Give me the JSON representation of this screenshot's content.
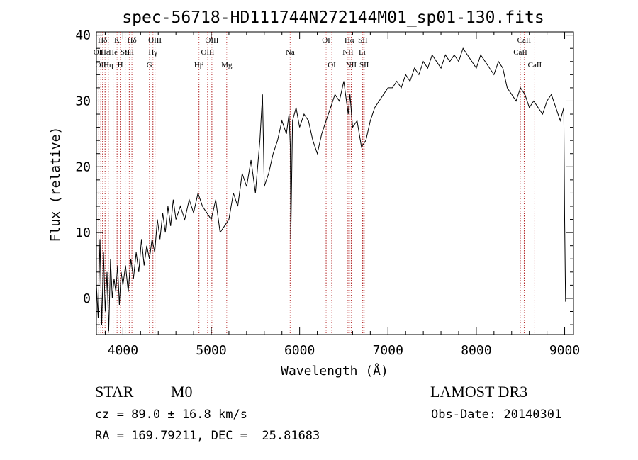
{
  "chart_data": {
    "type": "line",
    "title": "spec-56718-HD111744N272144M01_sp01-130.fits",
    "xlabel": "Wavelength (Å)",
    "ylabel": "Flux (relative)",
    "xlim": [
      3700,
      9100
    ],
    "ylim": [
      -5.5,
      40.5
    ],
    "x_ticks": [
      4000,
      5000,
      6000,
      7000,
      8000,
      9000
    ],
    "x_tick_labels": [
      "4000",
      "5000",
      "6000",
      "7000",
      "8000",
      "9000"
    ],
    "y_ticks": [
      0,
      10,
      20,
      30,
      40
    ],
    "y_tick_labels": [
      "0",
      "10",
      "20",
      "30",
      "40"
    ],
    "grid": false,
    "line_color": "#000000",
    "marker_color": "#b22222",
    "series": [
      {
        "x": [
          3700,
          3720,
          3740,
          3760,
          3780,
          3800,
          3820,
          3840,
          3860,
          3880,
          3900,
          3920,
          3940,
          3960,
          3980,
          4000,
          4030,
          4060,
          4090,
          4120,
          4150,
          4180,
          4210,
          4240,
          4270,
          4300,
          4330,
          4360,
          4390,
          4420,
          4450,
          4480,
          4510,
          4540,
          4570,
          4600,
          4650,
          4700,
          4750,
          4800,
          4850,
          4900,
          4950,
          5000,
          5050,
          5100,
          5150,
          5200,
          5250,
          5300,
          5350,
          5400,
          5450,
          5500,
          5550,
          5580,
          5600,
          5650,
          5700,
          5750,
          5800,
          5850,
          5880,
          5895,
          5900,
          5920,
          5960,
          6000,
          6050,
          6100,
          6150,
          6200,
          6250,
          6300,
          6350,
          6400,
          6450,
          6500,
          6550,
          6570,
          6600,
          6650,
          6700,
          6750,
          6800,
          6850,
          6900,
          6950,
          7000,
          7050,
          7100,
          7150,
          7200,
          7250,
          7300,
          7350,
          7400,
          7450,
          7500,
          7550,
          7600,
          7650,
          7700,
          7750,
          7800,
          7850,
          7900,
          7950,
          8000,
          8050,
          8100,
          8150,
          8200,
          8250,
          8300,
          8350,
          8400,
          8450,
          8500,
          8550,
          8600,
          8650,
          8700,
          8750,
          8800,
          8850,
          8900,
          8950,
          8990,
          9000,
          9010
        ],
        "y": [
          2,
          -3,
          9,
          -4,
          7,
          -2,
          4,
          -5,
          6,
          0,
          3,
          1,
          5,
          -1,
          4,
          2,
          5,
          1,
          6,
          3,
          7,
          4,
          9,
          5,
          8,
          6,
          9,
          7,
          12,
          9,
          13,
          10,
          14,
          11,
          15,
          12,
          14,
          12,
          15,
          13,
          16,
          14,
          13,
          12,
          15,
          10,
          11,
          12,
          16,
          14,
          19,
          17,
          21,
          16,
          24,
          31,
          17,
          19,
          22,
          24,
          27,
          25,
          28,
          23,
          9,
          27,
          29,
          26,
          28,
          27,
          24,
          22,
          25,
          27,
          29,
          31,
          30,
          33,
          28,
          31,
          26,
          27,
          23,
          24,
          27,
          29,
          30,
          31,
          32,
          32,
          33,
          32,
          34,
          33,
          35,
          34,
          36,
          35,
          37,
          36,
          35,
          37,
          36,
          37,
          36,
          38,
          37,
          36,
          35,
          37,
          36,
          35,
          34,
          36,
          35,
          32,
          31,
          30,
          32,
          31,
          29,
          30,
          29,
          28,
          30,
          31,
          29,
          27,
          29,
          12,
          -0.5
        ]
      }
    ],
    "line_markers": [
      {
        "wl": 3727,
        "label": "OII",
        "row": 2
      },
      {
        "wl": 3750,
        "label": "OII",
        "row": 3
      },
      {
        "wl": 3770,
        "label": "Hδ",
        "row": 1
      },
      {
        "wl": 3798,
        "label": "Hε",
        "row": 2
      },
      {
        "wl": 3835,
        "label": "Hη",
        "row": 3
      },
      {
        "wl": 3889,
        "label": "He",
        "row": 2
      },
      {
        "wl": 3934,
        "label": "K",
        "row": 1
      },
      {
        "wl": 3970,
        "label": "H",
        "row": 3
      },
      {
        "wl": 4026,
        "label": "SII",
        "row": 2
      },
      {
        "wl": 4102,
        "label": "Hδ",
        "row": 1
      },
      {
        "wl": 4072,
        "label": "SII",
        "row": 2
      },
      {
        "wl": 4300,
        "label": "G",
        "row": 3
      },
      {
        "wl": 4340,
        "label": "Hγ",
        "row": 2
      },
      {
        "wl": 4363,
        "label": "OIII",
        "row": 1
      },
      {
        "wl": 4861,
        "label": "Hβ",
        "row": 3
      },
      {
        "wl": 4959,
        "label": "OIII",
        "row": 2
      },
      {
        "wl": 5007,
        "label": "OIII",
        "row": 1
      },
      {
        "wl": 5175,
        "label": "Mg",
        "row": 3
      },
      {
        "wl": 5893,
        "label": "Na",
        "row": 2
      },
      {
        "wl": 6300,
        "label": "OI",
        "row": 1
      },
      {
        "wl": 6364,
        "label": "OI",
        "row": 3
      },
      {
        "wl": 6548,
        "label": "NII",
        "row": 2
      },
      {
        "wl": 6563,
        "label": "Hα",
        "row": 1
      },
      {
        "wl": 6584,
        "label": "NII",
        "row": 3
      },
      {
        "wl": 6708,
        "label": "Li",
        "row": 2
      },
      {
        "wl": 6716,
        "label": "SII",
        "row": 1
      },
      {
        "wl": 6731,
        "label": "SII",
        "row": 3
      },
      {
        "wl": 8498,
        "label": "CaII",
        "row": 2
      },
      {
        "wl": 8542,
        "label": "CaII",
        "row": 1
      },
      {
        "wl": 8662,
        "label": "CaII",
        "row": 3
      }
    ]
  },
  "info": {
    "object_class": "STAR",
    "subclass": "M0",
    "survey": "LAMOST DR3",
    "cz": "cz = 89.0 ± 16.8 km/s",
    "obs_date": "Obs-Date: 20140301",
    "coords": "RA = 169.79211, DEC =  25.81683"
  }
}
